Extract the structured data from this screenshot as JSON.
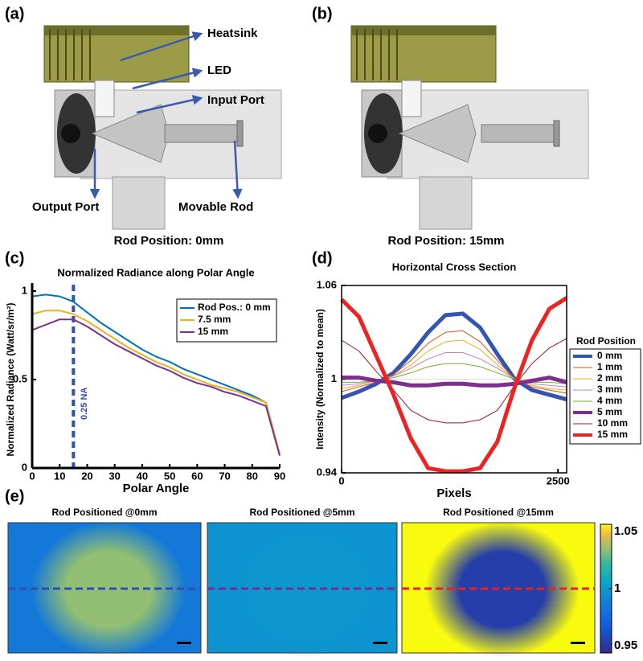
{
  "panels": {
    "a": "(a)",
    "b": "(b)",
    "c": "(c)",
    "d": "(d)",
    "e": "(e)"
  },
  "diagram": {
    "labels": [
      "Heatsink",
      "LED",
      "Input Port",
      "Output Port",
      "Movable Rod"
    ],
    "captions": [
      "Rod Position: 0mm",
      "Rod Position: 15mm"
    ]
  },
  "chart_data": [
    {
      "type": "line",
      "title": "Normalized Radiance along Polar Angle",
      "x_label": "Polar Angle",
      "y_label": "Normalized Radiance (Watt/sr/m²)",
      "x": [
        0,
        5,
        10,
        15,
        20,
        25,
        30,
        35,
        40,
        45,
        50,
        55,
        60,
        65,
        70,
        75,
        80,
        85,
        90
      ],
      "xlim": [
        0,
        90
      ],
      "xticks": [
        0,
        10,
        20,
        30,
        40,
        50,
        60,
        70,
        80,
        90
      ],
      "ylim": [
        0,
        1
      ],
      "yticks": [
        0,
        0.5,
        1
      ],
      "legend": "upper right",
      "vline": {
        "x": 15,
        "label": "0.25 NA",
        "color": "#2f4fb5"
      },
      "series": [
        {
          "name": "Rod Pos.: 0 mm",
          "color": "#0072bd",
          "values": [
            0.97,
            0.98,
            0.97,
            0.94,
            0.88,
            0.82,
            0.77,
            0.72,
            0.67,
            0.63,
            0.6,
            0.56,
            0.53,
            0.5,
            0.47,
            0.44,
            0.41,
            0.37,
            0.08
          ]
        },
        {
          "name": "7.5 mm",
          "color": "#edb120",
          "values": [
            0.87,
            0.89,
            0.89,
            0.87,
            0.83,
            0.78,
            0.73,
            0.68,
            0.64,
            0.6,
            0.57,
            0.53,
            0.5,
            0.47,
            0.45,
            0.43,
            0.4,
            0.37,
            0.08
          ]
        },
        {
          "name": "15 mm",
          "color": "#7e2f8e",
          "values": [
            0.78,
            0.81,
            0.84,
            0.84,
            0.8,
            0.75,
            0.7,
            0.66,
            0.62,
            0.58,
            0.55,
            0.51,
            0.48,
            0.46,
            0.43,
            0.41,
            0.38,
            0.35,
            0.07
          ]
        }
      ]
    },
    {
      "type": "line",
      "title": "Horizontal Cross Section",
      "x_label": "Pixels",
      "y_label": "Intensity (Normalized to mean)",
      "x": [
        0,
        200,
        400,
        600,
        800,
        1000,
        1200,
        1400,
        1600,
        1800,
        2000,
        2200,
        2400,
        2600
      ],
      "xlim": [
        0,
        2600
      ],
      "xticks": [
        0,
        2500
      ],
      "ylim": [
        0.94,
        1.06
      ],
      "yticks": [
        0.94,
        1,
        1.06
      ],
      "grid": true,
      "legend": "outside right",
      "legend_title": "Rod Position",
      "series": [
        {
          "name": "0 mm",
          "color": "#3353b5",
          "linewidth": 5,
          "values": [
            0.988,
            0.992,
            0.997,
            1.004,
            1.016,
            1.03,
            1.041,
            1.042,
            1.033,
            1.016,
            1.0,
            0.993,
            0.99,
            0.987
          ]
        },
        {
          "name": "1 mm",
          "color": "#d95319",
          "linewidth": 1,
          "values": [
            0.992,
            0.995,
            0.998,
            1.003,
            1.012,
            1.023,
            1.03,
            1.031,
            1.024,
            1.012,
            1.0,
            0.995,
            0.993,
            0.991
          ]
        },
        {
          "name": "2 mm",
          "color": "#edb120",
          "linewidth": 1,
          "values": [
            0.994,
            0.996,
            0.999,
            1.002,
            1.009,
            1.018,
            1.024,
            1.025,
            1.019,
            1.009,
            1.0,
            0.996,
            0.994,
            0.993
          ]
        },
        {
          "name": "3 mm",
          "color": "#c77ec4",
          "linewidth": 1,
          "values": [
            0.996,
            0.997,
            0.999,
            1.002,
            1.007,
            1.013,
            1.017,
            1.017,
            1.013,
            1.007,
            1.0,
            0.997,
            0.996,
            0.995
          ]
        },
        {
          "name": "4 mm",
          "color": "#77ac30",
          "linewidth": 1,
          "values": [
            0.998,
            0.998,
            0.999,
            1.001,
            1.004,
            1.008,
            1.01,
            1.01,
            1.008,
            1.004,
            1.0,
            0.998,
            0.998,
            0.997
          ]
        },
        {
          "name": "5 mm",
          "color": "#7e2f8e",
          "linewidth": 5,
          "values": [
            1.001,
            1.001,
            0.999,
            0.998,
            0.996,
            0.996,
            0.997,
            0.997,
            0.996,
            0.996,
            0.997,
            0.999,
            1.001,
            0.998
          ]
        },
        {
          "name": "10 mm",
          "color": "#a2142f",
          "linewidth": 1,
          "values": [
            1.025,
            1.018,
            1.005,
            0.993,
            0.98,
            0.974,
            0.972,
            0.972,
            0.974,
            0.98,
            0.996,
            1.01,
            1.02,
            1.026
          ]
        },
        {
          "name": "15 mm",
          "color": "#ee2222",
          "linewidth": 5,
          "values": [
            1.051,
            1.04,
            1.015,
            0.99,
            0.962,
            0.943,
            0.941,
            0.941,
            0.943,
            0.96,
            0.995,
            1.025,
            1.045,
            1.052
          ]
        }
      ]
    },
    {
      "type": "heatmap",
      "clim": [
        0.95,
        1.05
      ],
      "cticks": [
        0.95,
        1,
        1.05
      ],
      "panels": [
        {
          "title": "Rod Positioned @0mm",
          "center_value": 1.03,
          "edge_value": 0.985
        },
        {
          "title": "Rod Positioned @5mm",
          "center_value": 0.999,
          "edge_value": 0.997
        },
        {
          "title": "Rod Positioned @15mm",
          "center_value": 0.958,
          "edge_value": 1.05
        }
      ]
    }
  ]
}
